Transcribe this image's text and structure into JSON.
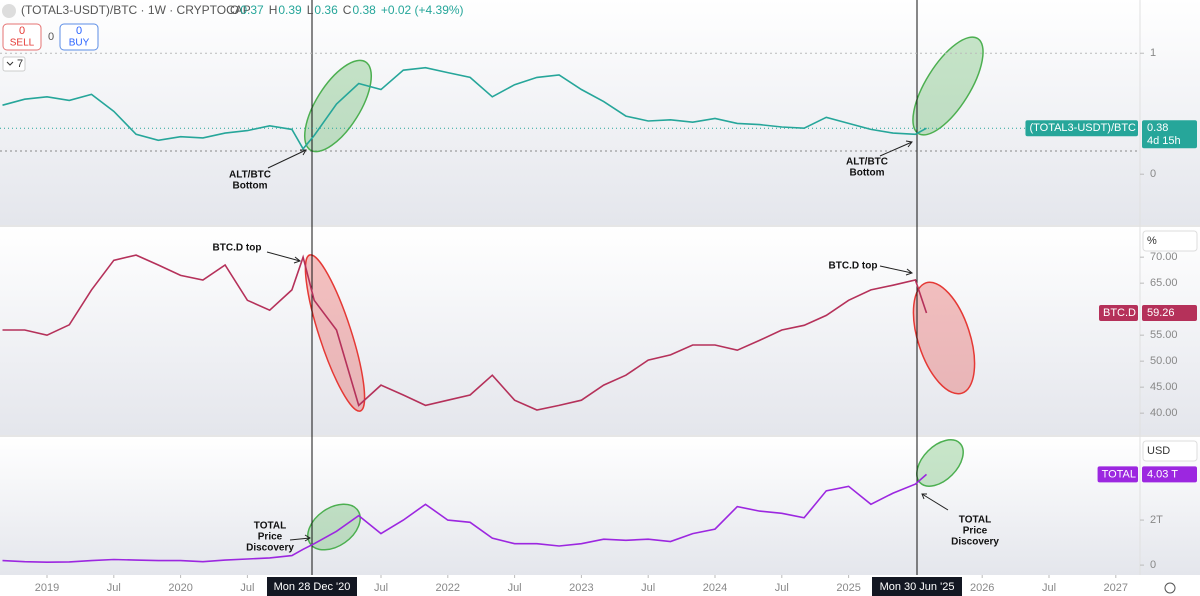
{
  "header": {
    "symbol": "(TOTAL3-USDT)/BTC · 1W · CRYPTOCAP",
    "ohlc": [
      [
        "O",
        "0.37"
      ],
      [
        "H",
        "0.39"
      ],
      [
        "L",
        "0.36"
      ],
      [
        "C",
        "0.38"
      ]
    ],
    "change": "+0.02 (+4.39%)",
    "sell": {
      "count": "0",
      "label": "SELL"
    },
    "spread": "0",
    "buy": {
      "count": "0",
      "label": "BUY"
    },
    "interval": "7"
  },
  "chart_data": [
    {
      "type": "line",
      "x": [
        "2018-09",
        "2018-11",
        "2019-01",
        "2019-03",
        "2019-05",
        "2019-07",
        "2019-09",
        "2019-11",
        "2020-01",
        "2020-03",
        "2020-05",
        "2020-07",
        "2020-09",
        "2020-11",
        "2020-12",
        "2021-01",
        "2021-03",
        "2021-05",
        "2021-07",
        "2021-09",
        "2021-11",
        "2022-01",
        "2022-03",
        "2022-05",
        "2022-07",
        "2022-09",
        "2022-11",
        "2023-01",
        "2023-03",
        "2023-05",
        "2023-07",
        "2023-09",
        "2023-11",
        "2024-01",
        "2024-03",
        "2024-05",
        "2024-07",
        "2024-09",
        "2024-11",
        "2025-01",
        "2025-03",
        "2025-05",
        "2025-07",
        "2025-08"
      ],
      "series": [
        {
          "name": "(TOTAL3-USDT)/BTC",
          "color": "#26a69a",
          "values": [
            0.57,
            0.62,
            0.64,
            0.61,
            0.66,
            0.52,
            0.33,
            0.28,
            0.31,
            0.3,
            0.34,
            0.36,
            0.4,
            0.37,
            0.21,
            0.32,
            0.58,
            0.75,
            0.7,
            0.86,
            0.88,
            0.84,
            0.8,
            0.64,
            0.74,
            0.8,
            0.82,
            0.7,
            0.6,
            0.48,
            0.44,
            0.45,
            0.43,
            0.46,
            0.42,
            0.41,
            0.39,
            0.38,
            0.47,
            0.42,
            0.37,
            0.34,
            0.33,
            0.38
          ]
        }
      ],
      "ylim": [
        -0.42,
        1.44
      ],
      "yticks": [
        0,
        1
      ],
      "last_value": 0.38,
      "countdown": "4d 15h",
      "annotations": [
        [
          "ALT/BTC",
          "Bottom"
        ],
        [
          "ALT/BTC",
          "Bottom"
        ]
      ]
    },
    {
      "type": "line",
      "x": [
        "2018-09",
        "2018-11",
        "2019-01",
        "2019-03",
        "2019-05",
        "2019-07",
        "2019-09",
        "2019-11",
        "2020-01",
        "2020-03",
        "2020-05",
        "2020-07",
        "2020-09",
        "2020-11",
        "2020-12",
        "2021-01",
        "2021-03",
        "2021-05",
        "2021-07",
        "2021-09",
        "2021-11",
        "2022-01",
        "2022-03",
        "2022-05",
        "2022-07",
        "2022-09",
        "2022-11",
        "2023-01",
        "2023-03",
        "2023-05",
        "2023-07",
        "2023-09",
        "2023-11",
        "2024-01",
        "2024-03",
        "2024-05",
        "2024-07",
        "2024-09",
        "2024-11",
        "2025-01",
        "2025-03",
        "2025-05",
        "2025-07",
        "2025-08"
      ],
      "series": [
        {
          "name": "BTC.D",
          "color": "#b5315a",
          "values": [
            56,
            56,
            55,
            57,
            63.7,
            69.4,
            70.4,
            68.5,
            66.5,
            65.6,
            68.5,
            61.7,
            59.8,
            63.7,
            70,
            61.7,
            56,
            41.5,
            45.4,
            43.5,
            41.5,
            42.5,
            43.5,
            47.3,
            42.5,
            40.6,
            41.5,
            42.5,
            45.4,
            47.3,
            50.2,
            51.2,
            53.1,
            53.1,
            52.1,
            54,
            56,
            56.9,
            58.8,
            61.7,
            63.7,
            64.6,
            65.6,
            59.26
          ]
        }
      ],
      "ylim": [
        35.8,
        75.8
      ],
      "yticks": [
        {
          "value": 40,
          "label": "40.00"
        },
        {
          "value": 45,
          "label": "45.00"
        },
        {
          "value": 50,
          "label": "50.00"
        },
        {
          "value": 55,
          "label": "55.00"
        },
        {
          "value": 65,
          "label": "65.00"
        },
        {
          "value": 70,
          "label": "70.00"
        }
      ],
      "unit": "%",
      "last_value": 59.26,
      "annotations": [
        [
          "BTC.D top"
        ],
        [
          "BTC.D top"
        ]
      ]
    },
    {
      "type": "line",
      "x": [
        "2018-09",
        "2018-11",
        "2019-01",
        "2019-03",
        "2019-05",
        "2019-07",
        "2019-09",
        "2019-11",
        "2020-01",
        "2020-03",
        "2020-05",
        "2020-07",
        "2020-09",
        "2020-11",
        "2020-12",
        "2021-01",
        "2021-03",
        "2021-05",
        "2021-07",
        "2021-09",
        "2021-11",
        "2022-01",
        "2022-03",
        "2022-05",
        "2022-07",
        "2022-09",
        "2022-11",
        "2023-01",
        "2023-03",
        "2023-05",
        "2023-07",
        "2023-09",
        "2023-11",
        "2024-01",
        "2024-03",
        "2024-05",
        "2024-07",
        "2024-09",
        "2024-11",
        "2025-01",
        "2025-03",
        "2025-05",
        "2025-07",
        "2025-08"
      ],
      "series": [
        {
          "name": "TOTAL",
          "color": "#9c27e0",
          "values": [
            0.2,
            0.15,
            0.13,
            0.14,
            0.2,
            0.25,
            0.22,
            0.2,
            0.2,
            0.15,
            0.22,
            0.27,
            0.32,
            0.42,
            0.7,
            0.95,
            1.5,
            2.2,
            1.4,
            2.0,
            2.7,
            2.0,
            1.9,
            1.2,
            0.95,
            0.95,
            0.85,
            0.95,
            1.15,
            1.1,
            1.15,
            1.05,
            1.4,
            1.6,
            2.6,
            2.4,
            2.3,
            2.1,
            3.3,
            3.5,
            2.7,
            3.2,
            3.6,
            4.03
          ]
        }
      ],
      "ylim": [
        -0.44,
        5.69
      ],
      "yticks": [
        0,
        {
          "value": 2,
          "label": "2T"
        }
      ],
      "unit": "USD",
      "last_value": 4.03,
      "last_value_label": "4.03 T",
      "annotations": [
        [
          "TOTAL",
          "Price",
          "Discovery"
        ],
        [
          "TOTAL",
          "Price",
          "Discovery"
        ]
      ],
      "xticks": [
        {
          "value": "2019-01",
          "label": "2019"
        },
        {
          "value": "2019-07",
          "label": "Jul"
        },
        {
          "value": "2020-01",
          "label": "2020"
        },
        {
          "value": "2020-07",
          "label": "Jul"
        },
        {
          "value": "2021-07",
          "label": "Jul"
        },
        {
          "value": "2022-01",
          "label": "2022"
        },
        {
          "value": "2022-07",
          "label": "Jul"
        },
        {
          "value": "2023-01",
          "label": "2023"
        },
        {
          "value": "2023-07",
          "label": "Jul"
        },
        {
          "value": "2024-01",
          "label": "2024"
        },
        {
          "value": "2024-07",
          "label": "Jul"
        },
        {
          "value": "2025-01",
          "label": "2025"
        },
        {
          "value": "2026-01",
          "label": "2026"
        },
        {
          "value": "2026-07",
          "label": "Jul"
        },
        {
          "value": "2027-01",
          "label": "2027"
        }
      ],
      "crosshair_labels": [
        "Mon 28 Dec '20",
        "Mon 30 Jun '25"
      ]
    }
  ]
}
